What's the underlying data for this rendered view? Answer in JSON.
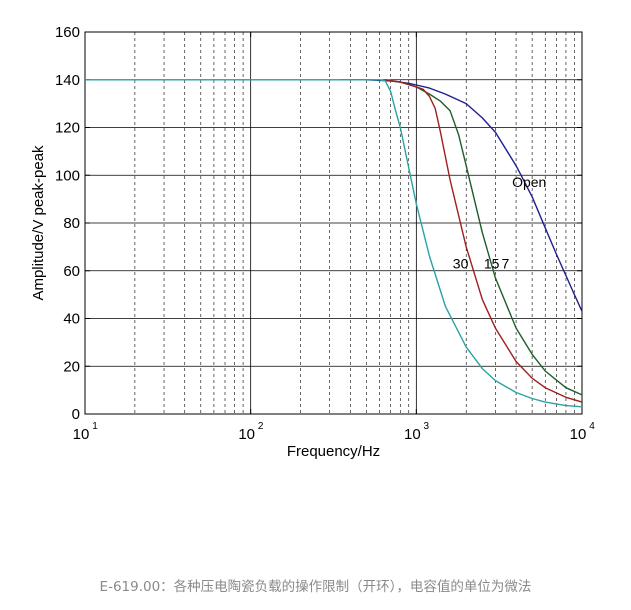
{
  "chart_data": {
    "type": "line",
    "title": "",
    "xlabel": "Frequency/Hz",
    "ylabel": "Amplitude/V peak-peak",
    "x_scale": "log",
    "xlim": [
      10,
      10000
    ],
    "ylim": [
      0,
      160
    ],
    "grid": true,
    "x_ticks": [
      10,
      100,
      1000,
      10000
    ],
    "x_tick_labels": [
      {
        "base": "10",
        "exp": "1"
      },
      {
        "base": "10",
        "exp": "2"
      },
      {
        "base": "10",
        "exp": "3"
      },
      {
        "base": "10",
        "exp": "4"
      }
    ],
    "y_ticks": [
      0,
      20,
      40,
      60,
      80,
      100,
      120,
      140,
      160
    ],
    "series": [
      {
        "name": "Open",
        "color": "#1f1f8f",
        "x": [
          350,
          500,
          700,
          900,
          1000,
          1200,
          1500,
          2000,
          2500,
          3000,
          4000,
          5000,
          6000,
          7000,
          8000,
          9000,
          10000
        ],
        "y": [
          140,
          140,
          139.5,
          138.5,
          137.8,
          136.5,
          134,
          130,
          124,
          118,
          104,
          91,
          78,
          67,
          58,
          50,
          43
        ]
      },
      {
        "name": "7",
        "color": "#1e5e28",
        "x": [
          650,
          800,
          1000,
          1200,
          1400,
          1600,
          1800,
          2000,
          2500,
          3000,
          4000,
          5000,
          6000,
          8000,
          10000
        ],
        "y": [
          140,
          139,
          137,
          134,
          131,
          127,
          117,
          104,
          76,
          57,
          36,
          25,
          18,
          11,
          8
        ]
      },
      {
        "name": "15",
        "color": "#a01e1e",
        "x": [
          650,
          800,
          900,
          1000,
          1100,
          1200,
          1300,
          1400,
          1600,
          2000,
          2500,
          3000,
          4000,
          5000,
          6000,
          8000,
          10000
        ],
        "y": [
          140,
          139,
          138,
          137,
          136,
          133,
          128,
          118,
          98,
          70,
          48,
          36,
          22,
          15,
          11,
          7,
          5
        ]
      },
      {
        "name": "30",
        "color": "#2aa3a3",
        "x": [
          10,
          100,
          300,
          500,
          600,
          650,
          700,
          750,
          800,
          900,
          1000,
          1200,
          1500,
          2000,
          2500,
          3000,
          4000,
          5000,
          6000,
          8000,
          10000
        ],
        "y": [
          140,
          140,
          140,
          140,
          140,
          139.5,
          135,
          127,
          120,
          103,
          88,
          66,
          45,
          28,
          19,
          14,
          9,
          6.5,
          5,
          3.5,
          3
        ]
      }
    ],
    "annotations": [
      {
        "text": "Open",
        "x": 4800,
        "y": 95
      },
      {
        "text": "30",
        "x": 1850,
        "y": 61
      },
      {
        "text": "15",
        "x": 2850,
        "y": 61
      },
      {
        "text": "7",
        "x": 3450,
        "y": 61
      }
    ]
  },
  "caption": "E-619.00：各种压电陶瓷负载的操作限制（开环），电容值的单位为微法"
}
